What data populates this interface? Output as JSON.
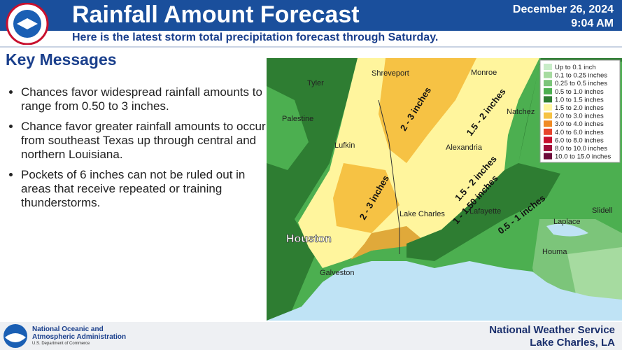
{
  "header": {
    "title": "Rainfall Amount Forecast",
    "subtitle": "Here is the latest storm total precipitation forecast through Saturday.",
    "date": "December 26, 2024",
    "time": "9:04 AM"
  },
  "key_messages": {
    "heading": "Key Messages",
    "bullets": [
      "Chances favor widespread rainfall amounts to range from 0.50 to 3 inches.",
      "Chance favor greater rainfall amounts to occur from southeast Texas up through central and northern Louisiana.",
      "Pockets of 6 inches can not be ruled out in areas that receive repeated or training thunderstorms."
    ]
  },
  "map": {
    "cities": [
      "Tyler",
      "Shreveport",
      "Monroe",
      "Palestine",
      "Natchez",
      "Lufkin",
      "Alexandria",
      "Lake Charles",
      "Lafayette",
      "Slidell",
      "Houston",
      "Laplace",
      "Houma",
      "Galveston"
    ],
    "contour_labels": [
      "2 - 3 inches",
      "1.5 - 2 inches",
      "2 - 3 inches",
      "1.5 - 2 inches",
      "1 - 1.50 inches",
      "0.5 - 1 inches"
    ],
    "legend": [
      {
        "label": "Up to 0.1 inch",
        "color": "#c8ecc8"
      },
      {
        "label": "0.1 to 0.25 inches",
        "color": "#a6dba0"
      },
      {
        "label": "0.25 to 0.5 inches",
        "color": "#7cc57a"
      },
      {
        "label": "0.5 to 1.0 inches",
        "color": "#4caf50"
      },
      {
        "label": "1.0 to 1.5 inches",
        "color": "#2e7d32"
      },
      {
        "label": "1.5 to 2.0 inches",
        "color": "#fff59d"
      },
      {
        "label": "2.0 to 3.0 inches",
        "color": "#f6c244"
      },
      {
        "label": "3.0 to 4.0 inches",
        "color": "#f08a24"
      },
      {
        "label": "4.0 to 6.0 inches",
        "color": "#e8452c"
      },
      {
        "label": "6.0 to 8.0 inches",
        "color": "#c8102e"
      },
      {
        "label": "8.0 to 10.0 inches",
        "color": "#a00d3a"
      },
      {
        "label": "10.0 to 15.0 inches",
        "color": "#6d0a3a"
      }
    ]
  },
  "footer": {
    "agency_line1": "National Oceanic and",
    "agency_line2": "Atmospheric Administration",
    "department": "U.S. Department of Commerce",
    "office": "National Weather Service",
    "location": "Lake Charles, LA"
  }
}
